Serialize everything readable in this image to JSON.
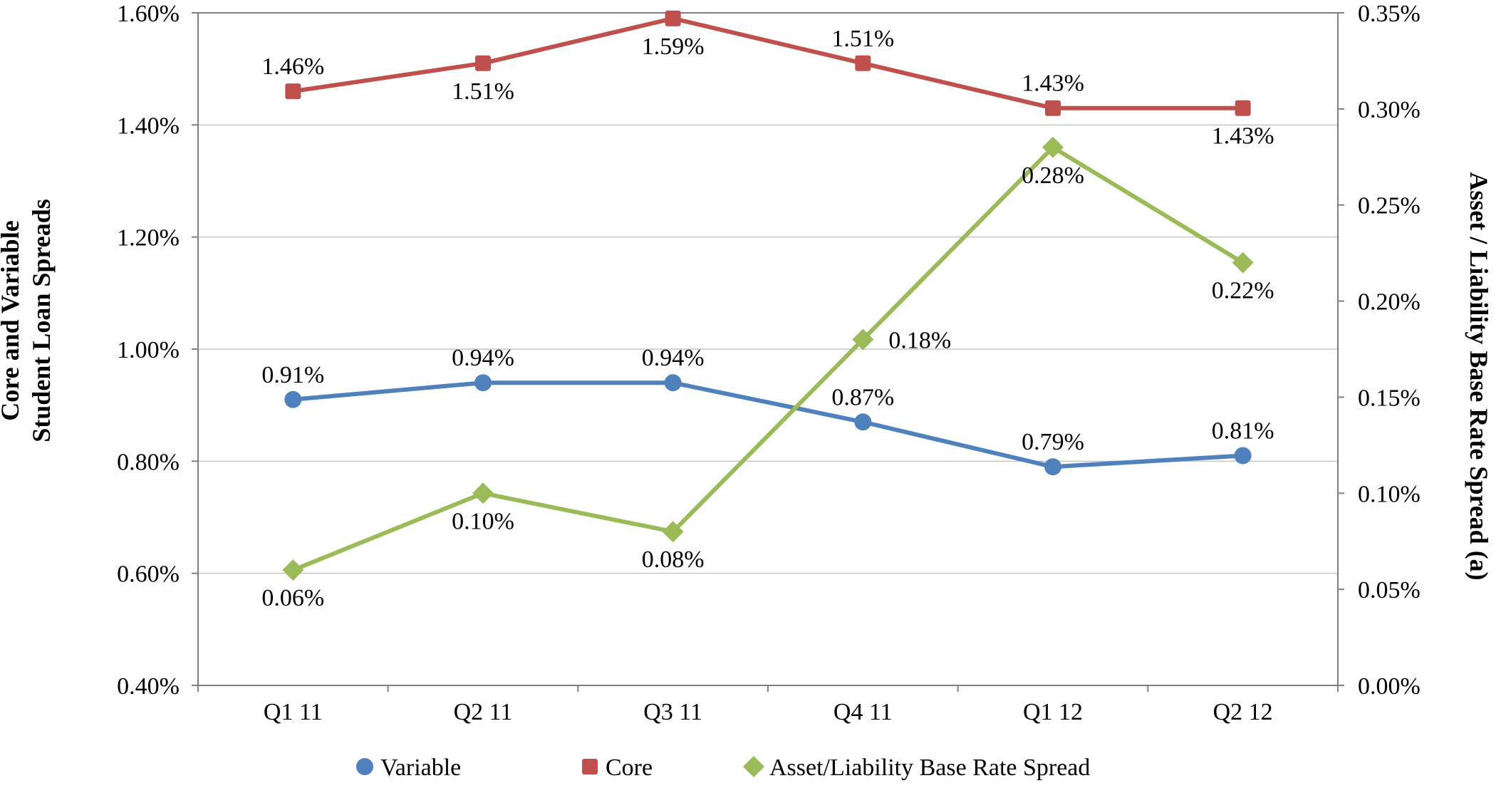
{
  "chart_data": {
    "type": "line",
    "categories": [
      "Q1 11",
      "Q2 11",
      "Q3 11",
      "Q4 11",
      "Q1 12",
      "Q2 12"
    ],
    "left_axis": {
      "title_lines": [
        "Core and Variable",
        "Student Loan Spreads"
      ],
      "min": 0.4,
      "max": 1.6,
      "step": 0.2,
      "tick_labels": [
        "0.40%",
        "0.60%",
        "0.80%",
        "1.00%",
        "1.20%",
        "1.40%",
        "1.60%"
      ]
    },
    "right_axis": {
      "title": "Asset / Liability Base Rate Spread (a)",
      "min": 0.0,
      "max": 0.35,
      "step": 0.05,
      "tick_labels": [
        "0.00%",
        "0.05%",
        "0.10%",
        "0.15%",
        "0.20%",
        "0.25%",
        "0.30%",
        "0.35%"
      ]
    },
    "grid": true,
    "legend_position": "bottom",
    "series": [
      {
        "name": "Variable",
        "axis": "left",
        "color": "#4F81BD",
        "marker": "circle",
        "values": [
          0.91,
          0.94,
          0.94,
          0.87,
          0.79,
          0.81
        ],
        "labels": [
          "0.91%",
          "0.94%",
          "0.94%",
          "0.87%",
          "0.79%",
          "0.81%"
        ],
        "label_pos": [
          "above",
          "above",
          "above",
          "above",
          "above",
          "above"
        ]
      },
      {
        "name": "Core",
        "axis": "left",
        "color": "#C0504D",
        "marker": "square",
        "values": [
          1.46,
          1.51,
          1.59,
          1.51,
          1.43,
          1.43
        ],
        "labels": [
          "1.46%",
          "1.51%",
          "1.59%",
          "1.51%",
          "1.43%",
          "1.43%"
        ],
        "label_pos": [
          "above",
          "below",
          "below",
          "above",
          "above",
          "below"
        ]
      },
      {
        "name": "Asset/Liability Base Rate Spread",
        "axis": "right",
        "color": "#9BBB59",
        "marker": "diamond",
        "values": [
          0.06,
          0.1,
          0.08,
          0.18,
          0.28,
          0.22
        ],
        "labels": [
          "0.06%",
          "0.10%",
          "0.08%",
          "0.18%",
          "0.28%",
          "0.22%"
        ],
        "label_pos": [
          "below",
          "below",
          "below",
          "right",
          "below",
          "below"
        ]
      }
    ],
    "legend": [
      "Variable",
      "Core",
      "Asset/Liability Base Rate Spread"
    ]
  }
}
